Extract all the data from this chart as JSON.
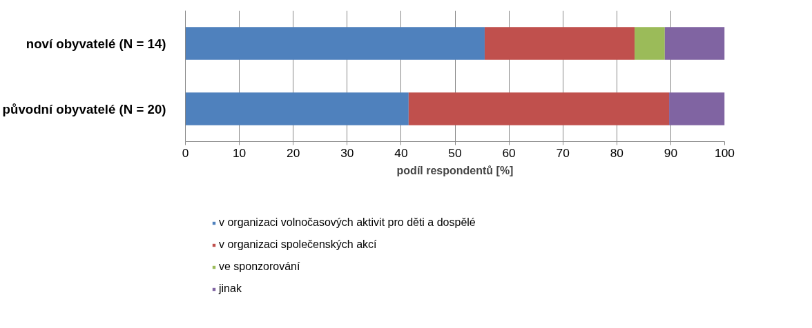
{
  "chart_data": {
    "type": "bar",
    "orientation": "horizontal",
    "stacked": true,
    "categories": [
      "noví obyvatelé (N = 14)",
      "původní obyvatelé (N = 20)"
    ],
    "series": [
      {
        "name": "v organizaci volnočasových aktivit pro děti a dospělé",
        "color": "#4f81bd",
        "values": [
          55.5,
          41.4
        ]
      },
      {
        "name": "v organizaci společenských akcí",
        "color": "#c0504d",
        "values": [
          27.8,
          48.3
        ]
      },
      {
        "name": "ve sponzorování",
        "color": "#9bbb59",
        "values": [
          5.6,
          null
        ]
      },
      {
        "name": "jinak",
        "color": "#8064a2",
        "values": [
          11.1,
          10.3
        ]
      }
    ],
    "xlim": [
      0,
      100
    ],
    "xticks": [
      0,
      10,
      20,
      30,
      40,
      50,
      60,
      70,
      80,
      90,
      100
    ],
    "xlabel": "podíl respondentů [%]",
    "grid": "x",
    "legend": "bottom"
  }
}
